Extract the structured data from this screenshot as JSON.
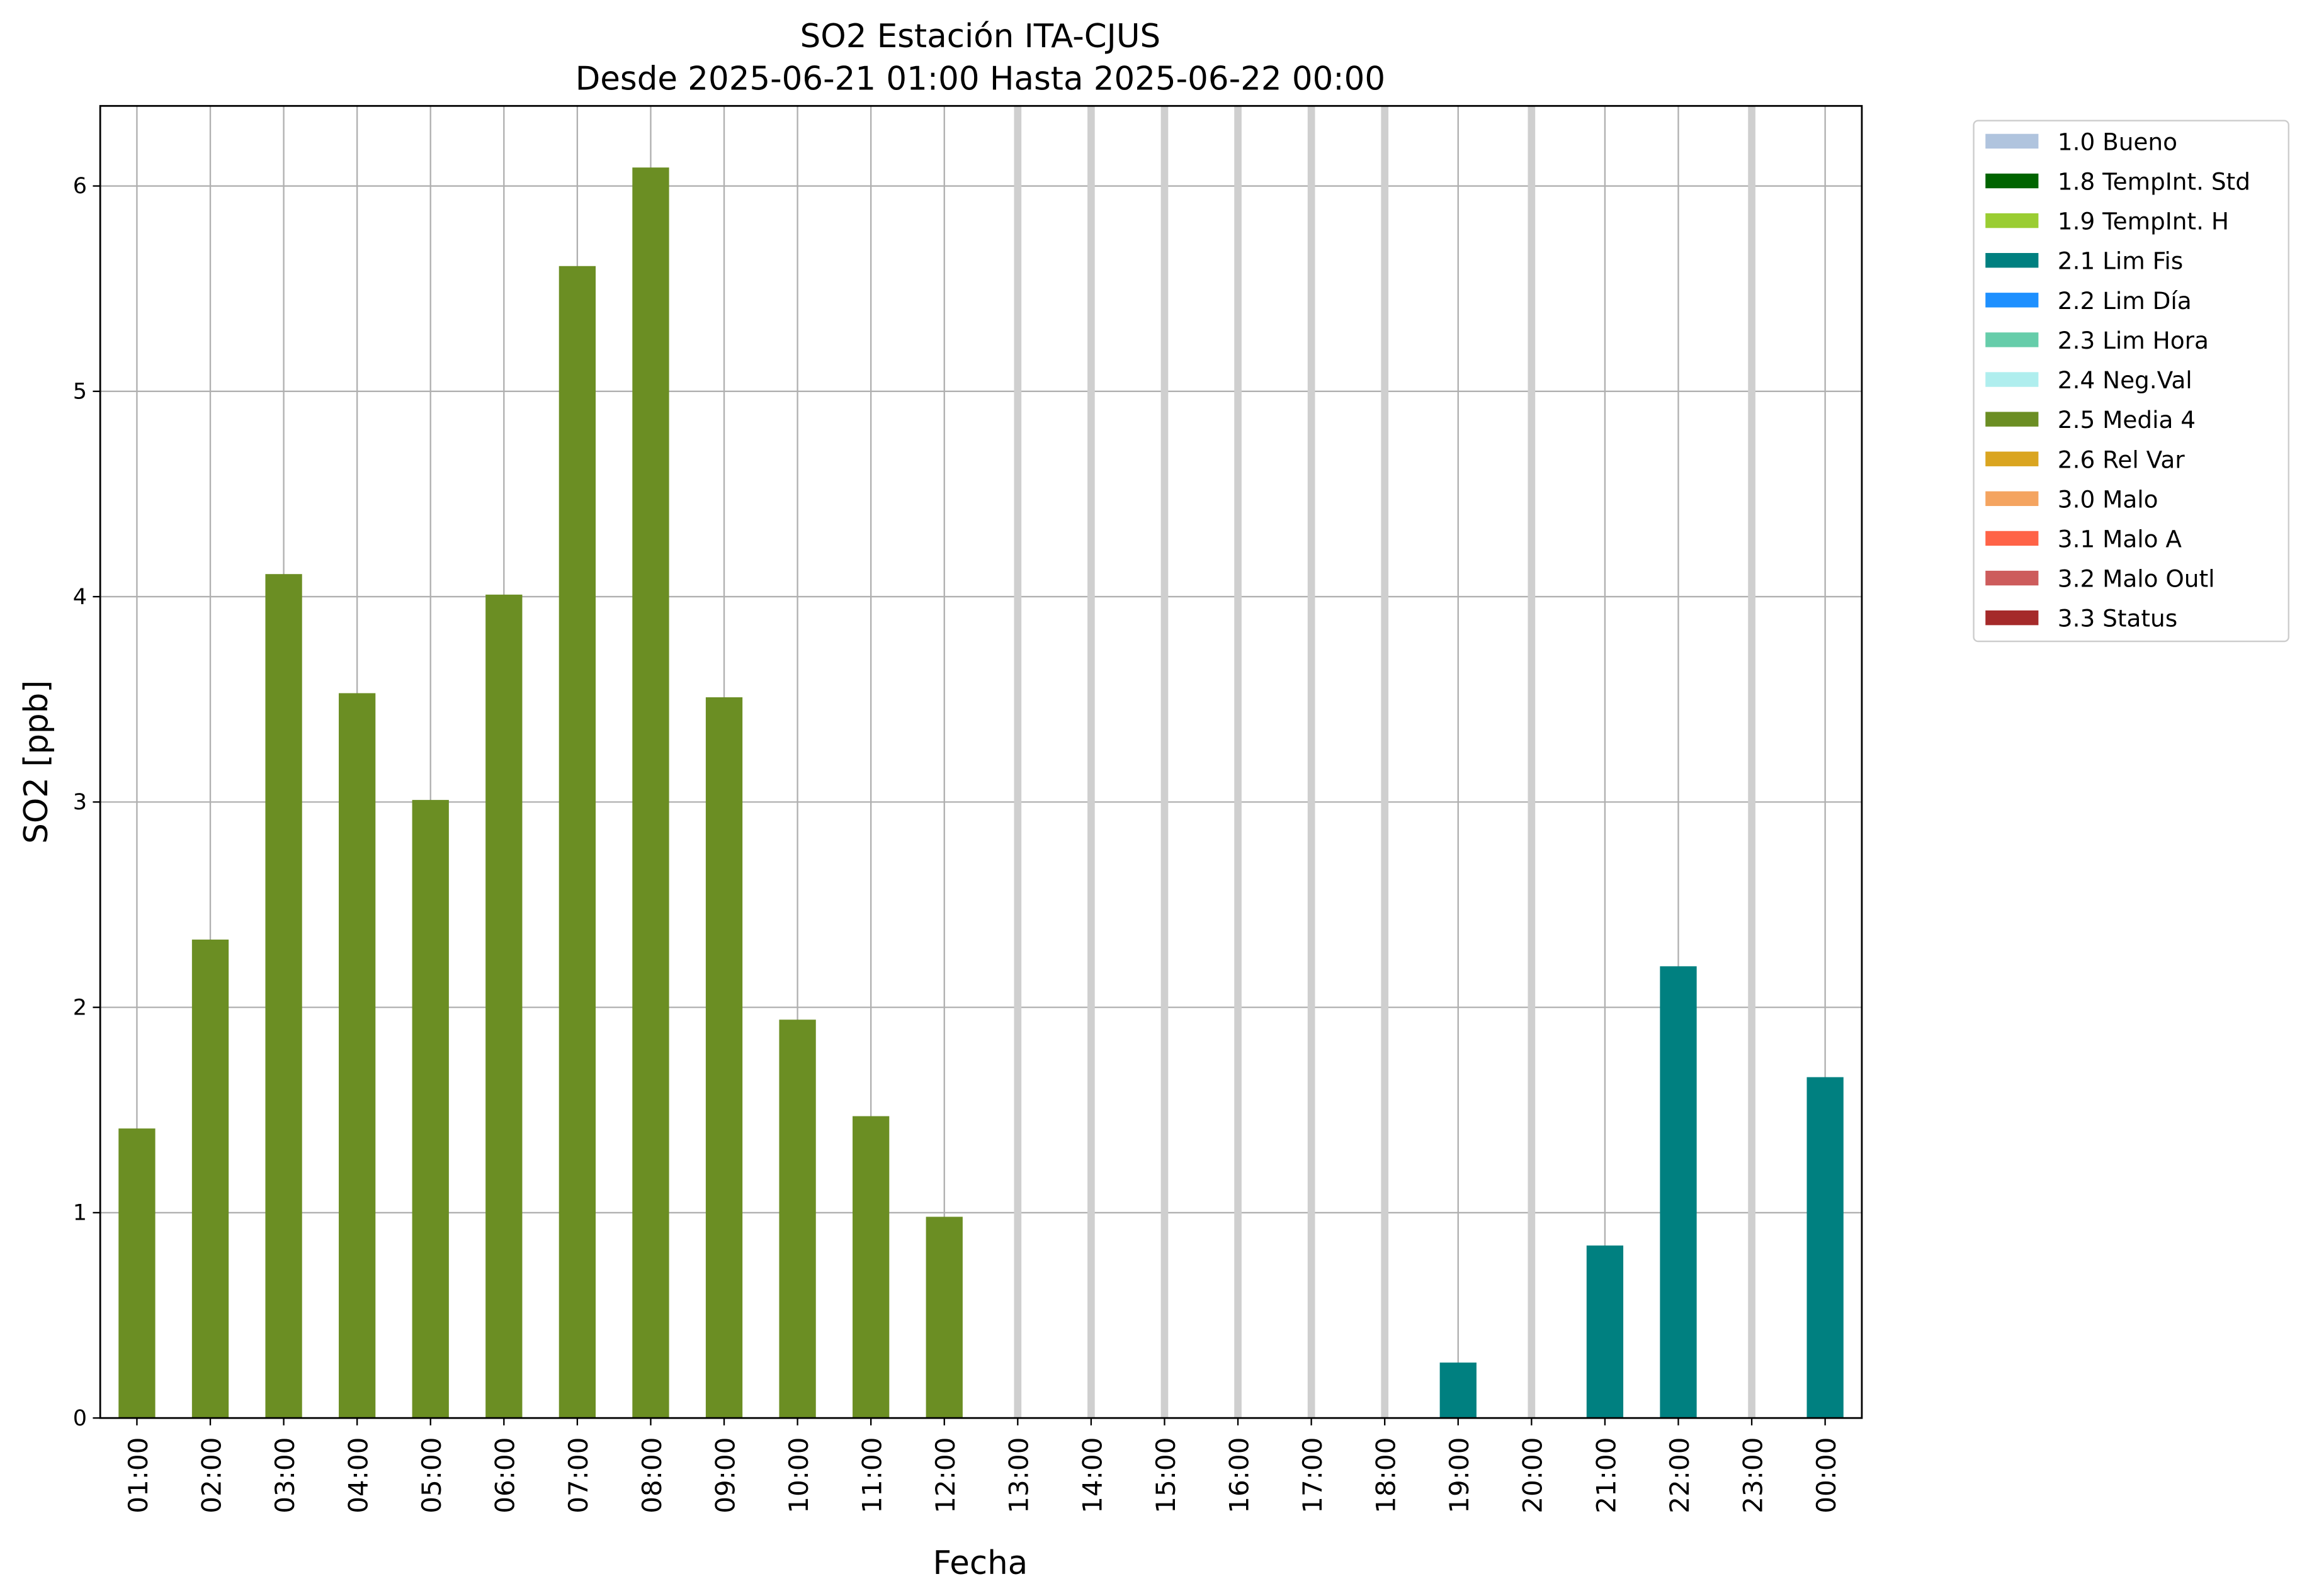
{
  "chart_data": {
    "type": "bar",
    "title": "SO2 Estación ITA-CJUS",
    "subtitle": "Desde 2025-06-21 01:00 Hasta 2025-06-22 00:00",
    "x_label": "Fecha",
    "y_label": "SO2 [ppb]",
    "categories": [
      "01:00",
      "02:00",
      "03:00",
      "04:00",
      "05:00",
      "06:00",
      "07:00",
      "08:00",
      "09:00",
      "10:00",
      "11:00",
      "12:00",
      "13:00",
      "14:00",
      "15:00",
      "16:00",
      "17:00",
      "18:00",
      "19:00",
      "20:00",
      "21:00",
      "22:00",
      "23:00",
      "00:00"
    ],
    "ylim": [
      0,
      6.39
    ],
    "yticks": [
      0,
      1,
      2,
      3,
      4,
      5,
      6
    ],
    "grid": true,
    "legend": "outside-right",
    "series": [
      {
        "name": "1.0 Bueno",
        "color": "#b0c4de",
        "values": [
          null,
          null,
          null,
          null,
          null,
          null,
          null,
          null,
          null,
          null,
          null,
          null,
          null,
          null,
          null,
          null,
          null,
          null,
          null,
          null,
          null,
          null,
          null,
          null
        ]
      },
      {
        "name": "1.8 TempInt. Std",
        "color": "#006400",
        "values": [
          null,
          null,
          null,
          null,
          null,
          null,
          null,
          null,
          null,
          null,
          null,
          null,
          null,
          null,
          null,
          null,
          null,
          null,
          null,
          null,
          null,
          null,
          null,
          null
        ]
      },
      {
        "name": "1.9 TempInt. H",
        "color": "#9acd32",
        "values": [
          null,
          null,
          null,
          null,
          null,
          null,
          null,
          null,
          null,
          null,
          null,
          null,
          null,
          null,
          null,
          null,
          null,
          null,
          null,
          null,
          null,
          null,
          null,
          null
        ]
      },
      {
        "name": "2.1 Lim Fis",
        "color": "#008080",
        "values": [
          null,
          null,
          null,
          null,
          null,
          null,
          null,
          null,
          null,
          null,
          null,
          null,
          null,
          null,
          null,
          null,
          null,
          null,
          0.27,
          null,
          0.84,
          2.2,
          null,
          1.66
        ]
      },
      {
        "name": "2.2 Lim Día",
        "color": "#1e90ff",
        "values": [
          null,
          null,
          null,
          null,
          null,
          null,
          null,
          null,
          null,
          null,
          null,
          null,
          null,
          null,
          null,
          null,
          null,
          null,
          null,
          null,
          null,
          null,
          null,
          null
        ]
      },
      {
        "name": "2.3 Lim Hora",
        "color": "#66cdaa",
        "values": [
          null,
          null,
          null,
          null,
          null,
          null,
          null,
          null,
          null,
          null,
          null,
          null,
          null,
          null,
          null,
          null,
          null,
          null,
          null,
          null,
          null,
          null,
          null,
          null
        ]
      },
      {
        "name": "2.4 Neg.Val",
        "color": "#afeeee",
        "values": [
          null,
          null,
          null,
          null,
          null,
          null,
          null,
          null,
          null,
          null,
          null,
          null,
          null,
          null,
          null,
          null,
          null,
          null,
          null,
          null,
          null,
          null,
          null,
          null
        ]
      },
      {
        "name": "2.5 Media 4",
        "color": "#6b8e23",
        "values": [
          1.41,
          2.33,
          4.11,
          3.53,
          3.01,
          4.01,
          5.61,
          6.09,
          3.51,
          1.94,
          1.47,
          0.98,
          null,
          null,
          null,
          null,
          null,
          null,
          null,
          null,
          null,
          null,
          null,
          null
        ]
      },
      {
        "name": "2.6 Rel Var",
        "color": "#daa520",
        "values": [
          null,
          null,
          null,
          null,
          null,
          null,
          null,
          null,
          null,
          null,
          null,
          null,
          null,
          null,
          null,
          null,
          null,
          null,
          null,
          null,
          null,
          null,
          null,
          null
        ]
      },
      {
        "name": "3.0 Malo",
        "color": "#f4a460",
        "values": [
          null,
          null,
          null,
          null,
          null,
          null,
          null,
          null,
          null,
          null,
          null,
          null,
          null,
          null,
          null,
          null,
          null,
          null,
          null,
          null,
          null,
          null,
          null,
          null
        ]
      },
      {
        "name": "3.1 Malo A",
        "color": "#ff6347",
        "values": [
          null,
          null,
          null,
          null,
          null,
          null,
          null,
          null,
          null,
          null,
          null,
          null,
          null,
          null,
          null,
          null,
          null,
          null,
          null,
          null,
          null,
          null,
          null,
          null
        ]
      },
      {
        "name": "3.2 Malo Outl",
        "color": "#cd5c5c",
        "values": [
          null,
          null,
          null,
          null,
          null,
          null,
          null,
          null,
          null,
          null,
          null,
          null,
          null,
          null,
          null,
          null,
          null,
          null,
          null,
          null,
          null,
          null,
          null,
          null
        ]
      },
      {
        "name": "3.3 Status",
        "color": "#a52a2a",
        "values": [
          null,
          null,
          null,
          null,
          null,
          null,
          null,
          null,
          null,
          null,
          null,
          null,
          null,
          null,
          null,
          null,
          null,
          null,
          null,
          null,
          null,
          null,
          null,
          null
        ]
      }
    ]
  }
}
